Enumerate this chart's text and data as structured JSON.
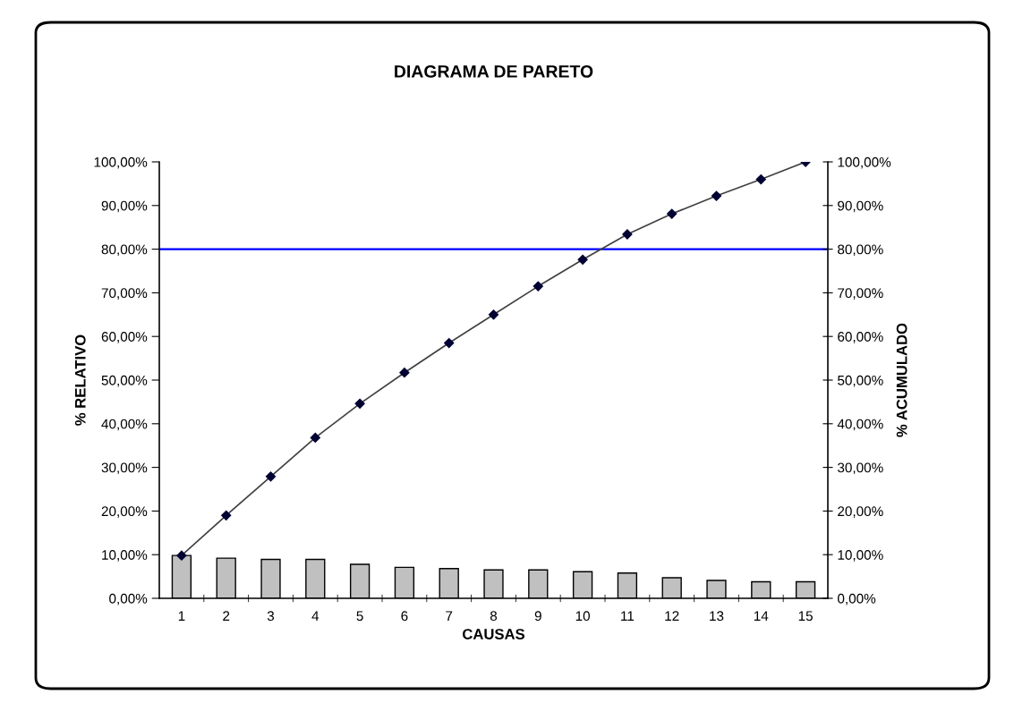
{
  "chart_data": {
    "type": "bar",
    "title": "DIAGRAMA DE PARETO",
    "xlabel": "CAUSAS",
    "ylabel": "% RELATIVO",
    "y2label": "% ACUMULADO",
    "categories": [
      "1",
      "2",
      "3",
      "4",
      "5",
      "6",
      "7",
      "8",
      "9",
      "10",
      "11",
      "12",
      "13",
      "14",
      "15"
    ],
    "series": [
      {
        "color": "#c0c0c0",
        "values": [
          9.8,
          9.2,
          8.9,
          8.9,
          7.8,
          7.1,
          6.8,
          6.5,
          6.5,
          6.1,
          5.8,
          4.7,
          4.1,
          3.8,
          3.8
        ]
      },
      {
        "type": "line",
        "axis": "y2",
        "color": "#000033",
        "marker": "diamond",
        "values": [
          9.8,
          19,
          27.9,
          36.8,
          44.6,
          51.7,
          58.5,
          65,
          71.5,
          77.6,
          83.4,
          88.1,
          92.2,
          96,
          100
        ]
      }
    ],
    "ylim": [
      0,
      100
    ],
    "yticks": [
      {
        "value": 0,
        "label": "0,00%"
      },
      {
        "value": 10,
        "label": "10,00%"
      },
      {
        "value": 20,
        "label": "20,00%"
      },
      {
        "value": 30,
        "label": "30,00%"
      },
      {
        "value": 40,
        "label": "40,00%"
      },
      {
        "value": 50,
        "label": "50,00%"
      },
      {
        "value": 60,
        "label": "60,00%"
      },
      {
        "value": 70,
        "label": "70,00%"
      },
      {
        "value": 80,
        "label": "80,00%"
      },
      {
        "value": 90,
        "label": "90,00%"
      },
      {
        "value": 100,
        "label": "100,00%"
      }
    ],
    "y2lim": [
      0,
      100
    ],
    "y2ticks": [
      {
        "value": 0,
        "label": "0,00%"
      },
      {
        "value": 10,
        "label": "10,00%"
      },
      {
        "value": 20,
        "label": "20,00%"
      },
      {
        "value": 30,
        "label": "30,00%"
      },
      {
        "value": 40,
        "label": "40,00%"
      },
      {
        "value": 50,
        "label": "50,00%"
      },
      {
        "value": 60,
        "label": "60,00%"
      },
      {
        "value": 70,
        "label": "70,00%"
      },
      {
        "value": 80,
        "label": "80,00%"
      },
      {
        "value": 90,
        "label": "90,00%"
      },
      {
        "value": 100,
        "label": "100,00%"
      }
    ],
    "ref_lines": [
      {
        "axis": "y2",
        "value": 80,
        "color": "#0000ff"
      }
    ],
    "grid": false,
    "legend": false
  }
}
